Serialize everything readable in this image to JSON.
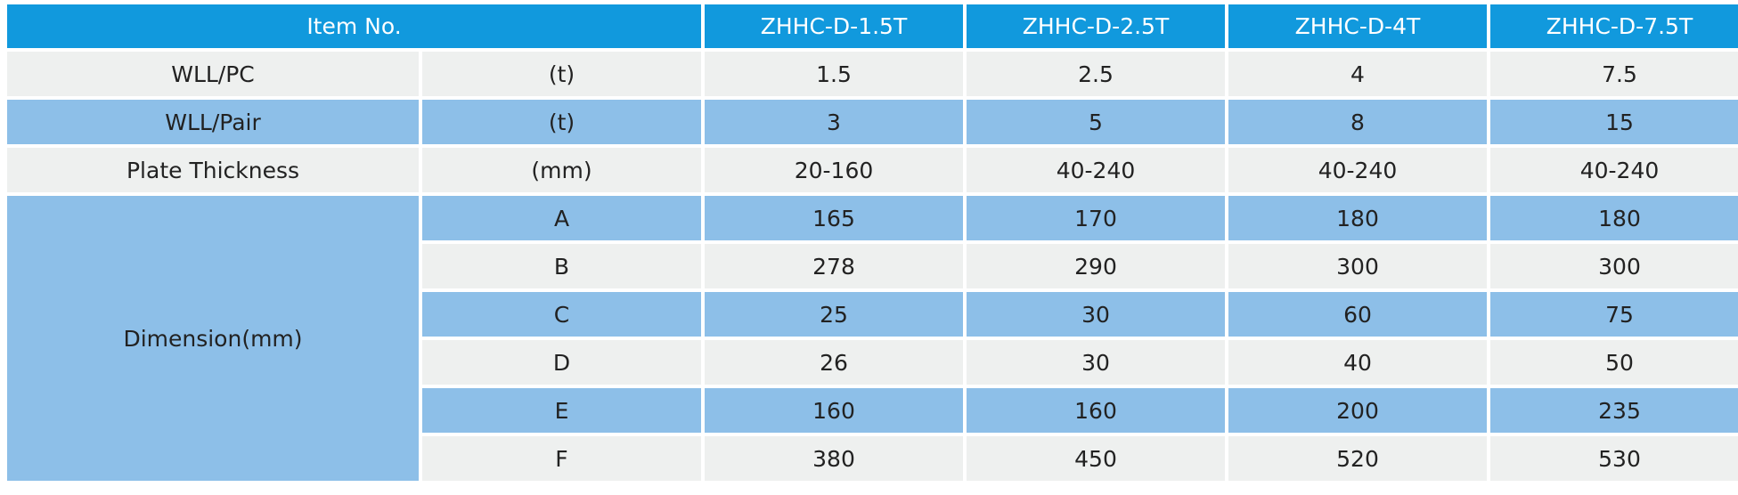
{
  "header": {
    "item_no": "Item No.",
    "models": [
      "ZHHC-D-1.5T",
      "ZHHC-D-2.5T",
      "ZHHC-D-4T",
      "ZHHC-D-7.5T"
    ]
  },
  "rows": [
    {
      "label": "WLL/PC",
      "unit": "(t)",
      "values": [
        "1.5",
        "2.5",
        "4",
        "7.5"
      ]
    },
    {
      "label": "WLL/Pair",
      "unit": "(t)",
      "values": [
        "3",
        "5",
        "8",
        "15"
      ]
    },
    {
      "label": "Plate Thickness",
      "unit": "(mm)",
      "values": [
        "20-160",
        "40-240",
        "40-240",
        "40-240"
      ]
    }
  ],
  "dimension": {
    "label": "Dimension(mm)",
    "rows": [
      {
        "key": "A",
        "values": [
          "165",
          "170",
          "180",
          "180"
        ]
      },
      {
        "key": "B",
        "values": [
          "278",
          "290",
          "300",
          "300"
        ]
      },
      {
        "key": "C",
        "values": [
          "25",
          "30",
          "60",
          "75"
        ]
      },
      {
        "key": "D",
        "values": [
          "26",
          "30",
          "40",
          "50"
        ]
      },
      {
        "key": "E",
        "values": [
          "160",
          "160",
          "200",
          "235"
        ]
      },
      {
        "key": "F",
        "values": [
          "380",
          "450",
          "520",
          "530"
        ]
      }
    ]
  },
  "colors": {
    "header": "#1199dd",
    "light_row": "#eef0ef",
    "blue_row": "#8dbfe8"
  }
}
